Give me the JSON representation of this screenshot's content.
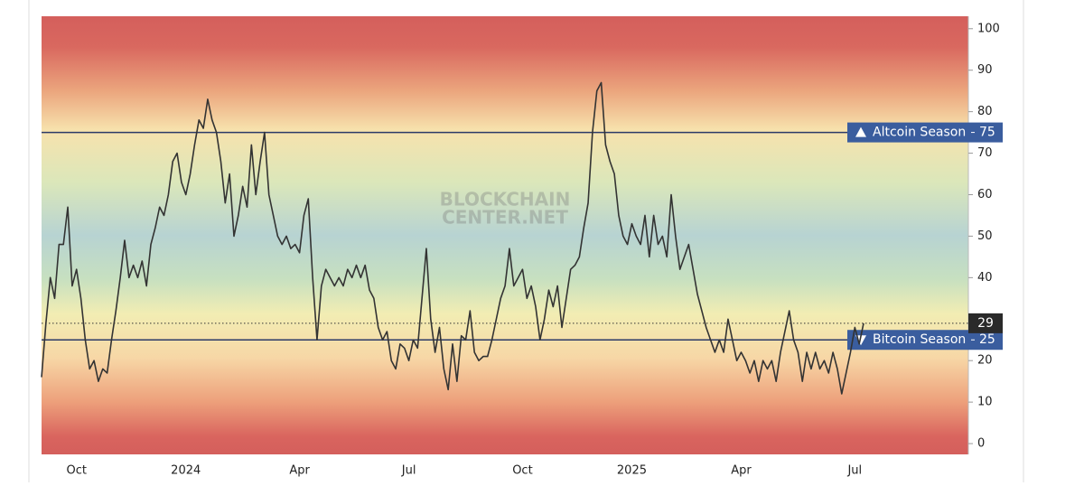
{
  "chart_data": {
    "type": "line",
    "watermark": [
      "BLOCKCHAIN",
      "CENTER.NET"
    ],
    "categories": [
      null,
      null,
      null,
      null,
      null,
      null,
      null,
      null,
      "Oct",
      null,
      null,
      null,
      null,
      null,
      null,
      null,
      null,
      null,
      null,
      null,
      null,
      null,
      null,
      null,
      null,
      null,
      null,
      null,
      null,
      null,
      null,
      null,
      null,
      "2024",
      null,
      null,
      null,
      null,
      null,
      null,
      null,
      null,
      null,
      null,
      null,
      null,
      null,
      null,
      null,
      null,
      null,
      null,
      null,
      null,
      null,
      null,
      null,
      null,
      null,
      "Apr",
      null,
      null,
      null,
      null,
      null,
      null,
      null,
      null,
      null,
      null,
      null,
      null,
      null,
      null,
      null,
      null,
      null,
      null,
      null,
      null,
      null,
      null,
      null,
      null,
      "Jul",
      null,
      null,
      null,
      null,
      null,
      null,
      null,
      null,
      null,
      null,
      null,
      null,
      null,
      null,
      null,
      null,
      null,
      null,
      null,
      null,
      null,
      null,
      null,
      null,
      null,
      "Oct",
      null,
      null,
      null,
      null,
      null,
      null,
      null,
      null,
      null,
      null,
      null,
      null,
      null,
      null,
      null,
      null,
      null,
      null,
      null,
      null,
      null,
      null,
      null,
      null,
      "2025",
      null,
      null,
      null,
      null,
      null,
      null,
      null,
      null,
      null,
      null,
      null,
      null,
      null,
      null,
      null,
      null,
      null,
      null,
      null,
      null,
      null,
      null,
      null,
      null,
      "Apr",
      null,
      null,
      null,
      null,
      null,
      null,
      null,
      null,
      null,
      null,
      null,
      null,
      null,
      null,
      null,
      null,
      null,
      null,
      null,
      null,
      null,
      null,
      null,
      null,
      null,
      "Jul",
      null,
      null
    ],
    "values": [
      16,
      29,
      40,
      35,
      48,
      48,
      57,
      38,
      42,
      35,
      25,
      18,
      20,
      15,
      18,
      17,
      25,
      32,
      40,
      49,
      40,
      43,
      40,
      44,
      38,
      48,
      52,
      57,
      55,
      60,
      68,
      70,
      63,
      60,
      65,
      72,
      78,
      76,
      83,
      78,
      75,
      68,
      58,
      65,
      50,
      55,
      62,
      57,
      72,
      60,
      68,
      75,
      60,
      55,
      50,
      48,
      50,
      47,
      48,
      46,
      55,
      59,
      40,
      25,
      38,
      42,
      40,
      38,
      40,
      38,
      42,
      40,
      43,
      40,
      43,
      37,
      35,
      28,
      25,
      27,
      20,
      18,
      24,
      23,
      20,
      25,
      23,
      35,
      47,
      30,
      22,
      28,
      18,
      13,
      24,
      15,
      26,
      25,
      32,
      22,
      20,
      21,
      21,
      25,
      30,
      35,
      38,
      47,
      38,
      40,
      42,
      35,
      38,
      33,
      25,
      30,
      37,
      33,
      38,
      28,
      35,
      42,
      43,
      45,
      52,
      58,
      75,
      85,
      87,
      72,
      68,
      65,
      55,
      50,
      48,
      53,
      50,
      48,
      55,
      45,
      55,
      48,
      50,
      45,
      60,
      50,
      42,
      45,
      48,
      42,
      36,
      32,
      28,
      25,
      22,
      25,
      22,
      30,
      25,
      20,
      22,
      20,
      17,
      20,
      15,
      20,
      18,
      20,
      15,
      22,
      27,
      32,
      25,
      22,
      15,
      22,
      18,
      22,
      18,
      20,
      17,
      22,
      18,
      12,
      17,
      22,
      28,
      24,
      29
    ],
    "color": "#333333",
    "ylim": [
      -2.6,
      103
    ],
    "yticks": [
      0,
      10,
      20,
      30,
      40,
      50,
      60,
      70,
      80,
      90,
      100
    ],
    "reference_lines": [
      {
        "value": 75,
        "label": "Altcoin Season",
        "color": "#2b3a67"
      },
      {
        "value": 25,
        "label": "Bitcoin Season",
        "color": "#2b3a67"
      }
    ]
  }
}
